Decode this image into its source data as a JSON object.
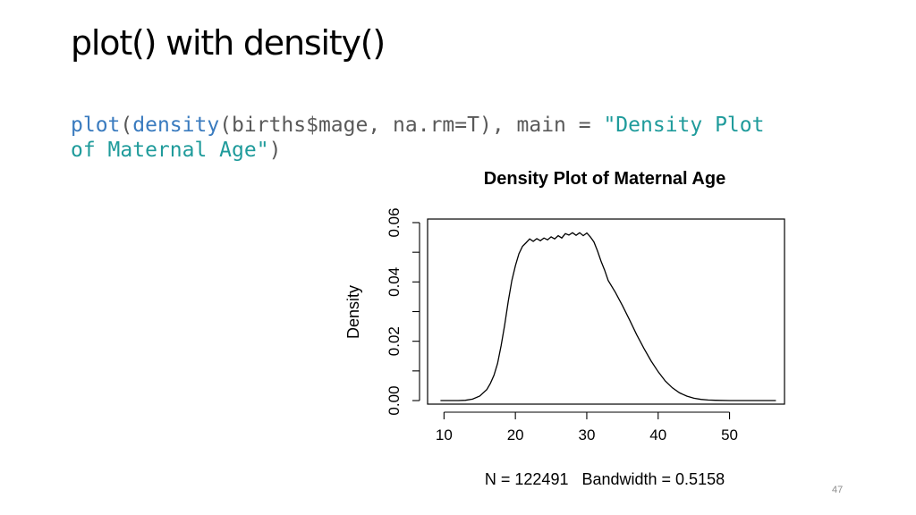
{
  "slide": {
    "title": "plot() with density()",
    "page_number": "47"
  },
  "code": {
    "fn_plot": "plot",
    "open1": "(",
    "fn_density": "density",
    "args": "(births$mage, na.rm=T), main = ",
    "string_line1": "\"Density Plot",
    "string_line2": "of Maternal Age\"",
    "close": ")"
  },
  "colors": {
    "code_function": "#3a7bbf",
    "code_string": "#1f9b9b",
    "code_text": "#595959",
    "curve": "#000000"
  },
  "chart_data": {
    "type": "line",
    "title": "Density Plot of Maternal Age",
    "xlabel": "N = 122491   Bandwidth = 0.5158",
    "ylabel": "Density",
    "xlim": [
      7.7,
      57.7
    ],
    "ylim": [
      -0.0012,
      0.0612
    ],
    "xticks": [
      10,
      20,
      30,
      40,
      50
    ],
    "yticks": [
      0.0,
      0.01,
      0.02,
      0.03,
      0.04,
      0.05,
      0.06
    ],
    "ytick_labels": [
      "0.00",
      "",
      "0.02",
      "",
      "0.04",
      "",
      "0.06"
    ],
    "grid": false,
    "series": [
      {
        "x": [
          9.5,
          12,
          13,
          14,
          15,
          16,
          16.5,
          17,
          17.5,
          18,
          18.5,
          19,
          19.5,
          20,
          20.5,
          21,
          21.5,
          22,
          22.5,
          23,
          23.5,
          24,
          24.5,
          25,
          25.5,
          26,
          26.5,
          27,
          27.5,
          28,
          28.5,
          29,
          29.5,
          30,
          30.5,
          31,
          31.5,
          32,
          32.5,
          33,
          34,
          35,
          36,
          37,
          38,
          39,
          40,
          41,
          42,
          43,
          44,
          45,
          46,
          47,
          48,
          50,
          53,
          56.5
        ],
        "y": [
          0.0,
          0.0,
          0.0001,
          0.0005,
          0.0015,
          0.0037,
          0.0058,
          0.0085,
          0.0125,
          0.0185,
          0.0255,
          0.0335,
          0.0405,
          0.0455,
          0.0495,
          0.052,
          0.0532,
          0.0545,
          0.0537,
          0.0546,
          0.0539,
          0.0548,
          0.0542,
          0.0552,
          0.0545,
          0.0556,
          0.0548,
          0.0563,
          0.0558,
          0.0566,
          0.0557,
          0.0566,
          0.0556,
          0.0565,
          0.0552,
          0.0535,
          0.0505,
          0.047,
          0.044,
          0.0405,
          0.0365,
          0.032,
          0.0272,
          0.0222,
          0.0176,
          0.0134,
          0.0097,
          0.0066,
          0.0043,
          0.0026,
          0.0015,
          0.0008,
          0.0004,
          0.0002,
          0.0001,
          0.0,
          0.0,
          0.0
        ]
      }
    ]
  }
}
